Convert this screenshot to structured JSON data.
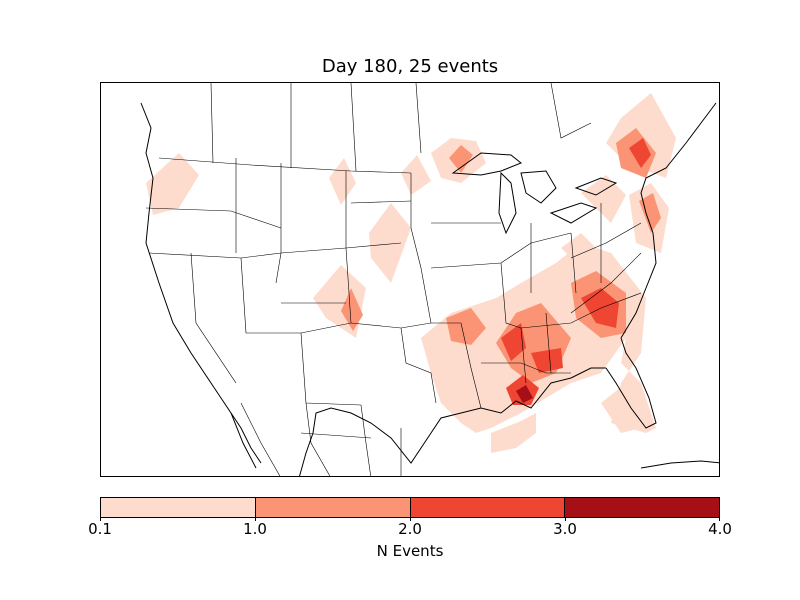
{
  "title": "Day 180, 25 events",
  "colorbar": {
    "label": "N Events",
    "ticks": [
      "0.1",
      "1.0",
      "2.0",
      "3.0",
      "4.0"
    ],
    "colors": [
      "#fddccd",
      "#fb9474",
      "#ef4533",
      "#a50f15"
    ]
  },
  "map": {
    "region": "North America (continental US)",
    "background": "#ffffff",
    "boundary_color": "#000000"
  }
}
